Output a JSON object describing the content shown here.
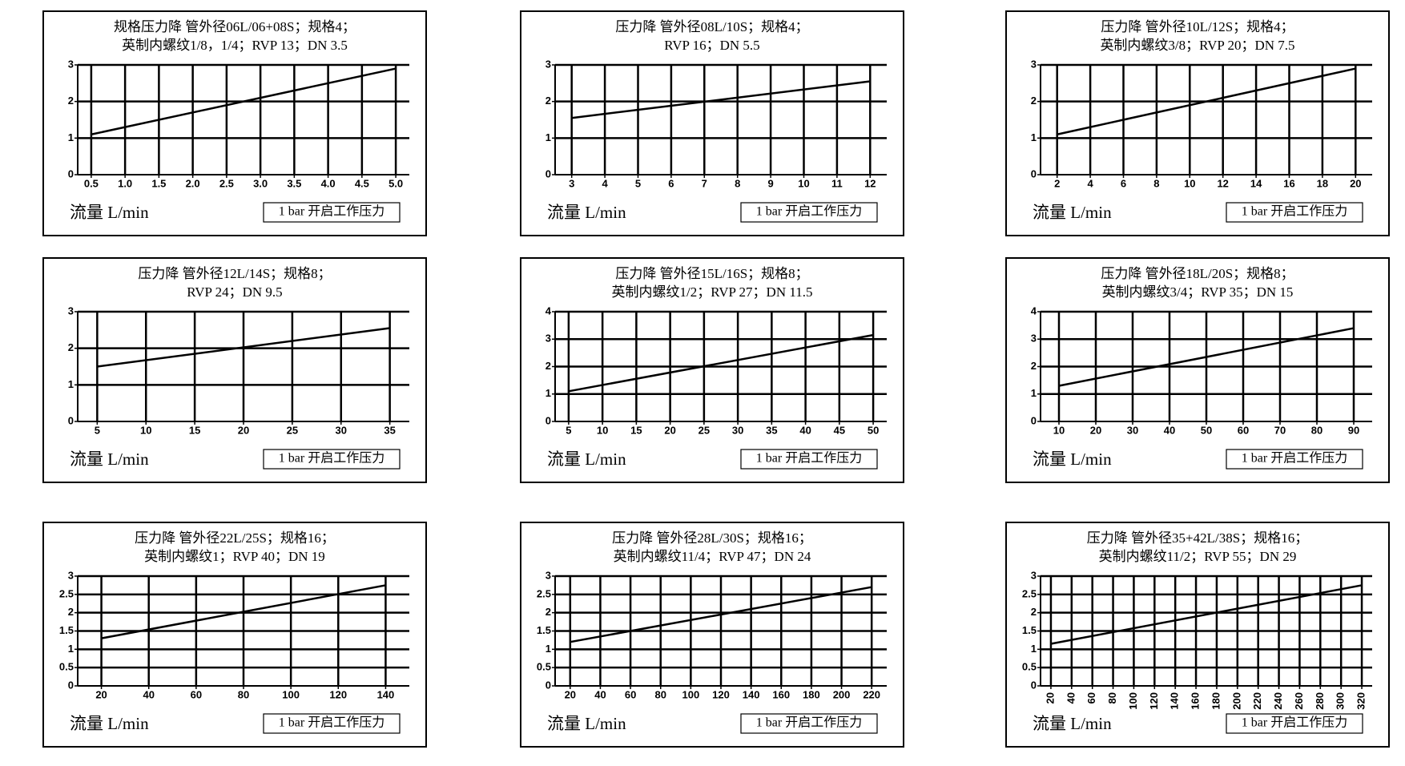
{
  "chart_data": [
    {
      "type": "line",
      "title": [
        "规格压力降 管外径06L/06+08S；规格4；",
        "英制内螺纹1/8，1/4；RVP 13；DN 3.5"
      ],
      "x_label": "流量 L/min",
      "annotation": "1 bar 开启工作压力",
      "x": [
        0.5,
        5.0
      ],
      "values": [
        1.1,
        2.9
      ],
      "color": "#000000",
      "xlim": [
        0.3,
        5.2
      ],
      "xticks": [
        0.5,
        {
          "value": 1,
          "label": "1.0"
        },
        1.5,
        {
          "value": 2,
          "label": "2.0"
        },
        2.5,
        {
          "value": 3,
          "label": "3.0"
        },
        3.5,
        {
          "value": 4,
          "label": "4.0"
        },
        4.5,
        {
          "value": 5,
          "label": "5.0"
        }
      ],
      "ylim": [
        0,
        3
      ],
      "yticks": [
        0,
        1,
        2,
        3
      ],
      "grid": true
    },
    {
      "type": "line",
      "title": [
        "压力降 管外径08L/10S；规格4；",
        "RVP 16；DN 5.5"
      ],
      "x_label": "流量 L/min",
      "annotation": "1 bar 开启工作压力",
      "x": [
        3,
        12
      ],
      "values": [
        1.55,
        2.55
      ],
      "color": "#000000",
      "xlim": [
        2.5,
        12.5
      ],
      "xticks": [
        3,
        4,
        5,
        6,
        7,
        8,
        9,
        10,
        11,
        12
      ],
      "ylim": [
        0,
        3
      ],
      "yticks": [
        0,
        1,
        2,
        3
      ],
      "grid": true
    },
    {
      "type": "line",
      "title": [
        "压力降 管外径10L/12S；规格4；",
        "英制内螺纹3/8；RVP 20；DN 7.5"
      ],
      "x_label": "流量 L/min",
      "annotation": "1 bar 开启工作压力",
      "x": [
        2,
        20
      ],
      "values": [
        1.1,
        2.9
      ],
      "color": "#000000",
      "xlim": [
        1,
        21
      ],
      "xticks": [
        2,
        4,
        6,
        8,
        10,
        12,
        14,
        16,
        18,
        20
      ],
      "ylim": [
        0,
        3
      ],
      "yticks": [
        0,
        1,
        2,
        3
      ],
      "grid": true
    },
    {
      "type": "line",
      "title": [
        "压力降 管外径12L/14S；规格8；",
        "RVP 24；DN 9.5"
      ],
      "x_label": "流量 L/min",
      "annotation": "1 bar 开启工作压力",
      "x": [
        5,
        35
      ],
      "values": [
        1.5,
        2.55
      ],
      "color": "#000000",
      "xlim": [
        3,
        37
      ],
      "xticks": [
        5,
        10,
        15,
        20,
        25,
        30,
        35
      ],
      "ylim": [
        0,
        3
      ],
      "yticks": [
        0,
        1,
        2,
        3
      ],
      "grid": true
    },
    {
      "type": "line",
      "title": [
        "压力降 管外径15L/16S；规格8；",
        "英制内螺纹1/2；RVP 27；DN 11.5"
      ],
      "x_label": "流量 L/min",
      "annotation": "1 bar 开启工作压力",
      "x": [
        5,
        50
      ],
      "values": [
        1.1,
        3.15
      ],
      "color": "#000000",
      "xlim": [
        3,
        52
      ],
      "xticks": [
        5,
        10,
        15,
        20,
        25,
        30,
        35,
        40,
        45,
        50
      ],
      "ylim": [
        0,
        4
      ],
      "yticks": [
        0,
        1,
        2,
        3,
        4
      ],
      "grid": true
    },
    {
      "type": "line",
      "title": [
        "压力降 管外径18L/20S；规格8；",
        "英制内螺纹3/4；RVP 35；DN 15"
      ],
      "x_label": "流量 L/min",
      "annotation": "1 bar 开启工作压力",
      "x": [
        10,
        90
      ],
      "values": [
        1.3,
        3.4
      ],
      "color": "#000000",
      "xlim": [
        5,
        95
      ],
      "xticks": [
        10,
        20,
        30,
        40,
        50,
        60,
        70,
        80,
        90
      ],
      "ylim": [
        0,
        4
      ],
      "yticks": [
        0,
        1,
        2,
        3,
        4
      ],
      "grid": true
    },
    {
      "type": "line",
      "title": [
        "压力降 管外径22L/25S；规格16；",
        "英制内螺纹1；RVP 40；DN 19"
      ],
      "x_label": "流量 L/min",
      "annotation": "1 bar 开启工作压力",
      "x": [
        20,
        140
      ],
      "values": [
        1.3,
        2.75
      ],
      "color": "#000000",
      "xlim": [
        10,
        150
      ],
      "xticks": [
        20,
        40,
        60,
        80,
        100,
        120,
        140
      ],
      "ylim": [
        0,
        3
      ],
      "yticks": [
        0,
        0.5,
        1,
        1.5,
        2,
        2.5,
        3
      ],
      "grid": true
    },
    {
      "type": "line",
      "title": [
        "压力降 管外径28L/30S；规格16；",
        "英制内螺纹11/4；RVP 47；DN 24"
      ],
      "x_label": "流量 L/min",
      "annotation": "1 bar 开启工作压力",
      "x": [
        20,
        220
      ],
      "values": [
        1.2,
        2.7
      ],
      "color": "#000000",
      "xlim": [
        10,
        230
      ],
      "xticks": [
        20,
        40,
        60,
        80,
        100,
        120,
        140,
        160,
        180,
        200,
        220
      ],
      "ylim": [
        0,
        3
      ],
      "yticks": [
        0,
        0.5,
        1,
        1.5,
        2,
        2.5,
        3
      ],
      "grid": true
    },
    {
      "type": "line",
      "title": [
        "压力降 管外径35+42L/38S；规格16；",
        "英制内螺纹11/2；RVP 55；DN 29"
      ],
      "x_label": "流量 L/min",
      "annotation": "1 bar 开启工作压力",
      "x": [
        20,
        320
      ],
      "values": [
        1.15,
        2.75
      ],
      "color": "#000000",
      "xlim": [
        10,
        330
      ],
      "xticks": [
        20,
        40,
        60,
        80,
        100,
        120,
        140,
        160,
        180,
        200,
        220,
        240,
        260,
        280,
        300,
        320
      ],
      "ylim": [
        0,
        3
      ],
      "yticks": [
        0,
        0.5,
        1,
        1.5,
        2,
        2.5,
        3
      ],
      "grid": true
    }
  ]
}
